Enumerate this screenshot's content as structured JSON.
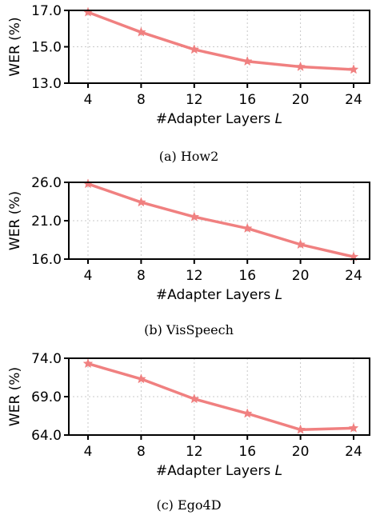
{
  "chart_data": [
    {
      "type": "line",
      "caption": "(a) How2",
      "ylabel": "WER (%)",
      "xlabel": "#Adapter Layers",
      "xlabel_var": "L",
      "x": [
        4,
        8,
        12,
        16,
        20,
        24
      ],
      "xticks": [
        "4",
        "8",
        "12",
        "16",
        "20",
        "24"
      ],
      "yticks": [
        "13.0",
        "15.0",
        "17.0"
      ],
      "ylim": [
        13.0,
        17.0
      ],
      "series": [
        {
          "values": [
            16.9,
            15.8,
            14.85,
            14.2,
            13.9,
            13.75
          ]
        }
      ],
      "grid": true,
      "color": "#f08080"
    },
    {
      "type": "line",
      "caption": "(b) VisSpeech",
      "ylabel": "WER (%)",
      "xlabel": "#Adapter Layers",
      "xlabel_var": "L",
      "x": [
        4,
        8,
        12,
        16,
        20,
        24
      ],
      "xticks": [
        "4",
        "8",
        "12",
        "16",
        "20",
        "24"
      ],
      "yticks": [
        "16.0",
        "21.0",
        "26.0"
      ],
      "ylim": [
        16.0,
        26.0
      ],
      "series": [
        {
          "values": [
            25.8,
            23.4,
            21.5,
            20.0,
            17.9,
            16.3
          ]
        }
      ],
      "grid": true,
      "color": "#f08080"
    },
    {
      "type": "line",
      "caption": "(c) Ego4D",
      "ylabel": "WER (%)",
      "xlabel": "#Adapter Layers",
      "xlabel_var": "L",
      "x": [
        4,
        8,
        12,
        16,
        20,
        24
      ],
      "xticks": [
        "4",
        "8",
        "12",
        "16",
        "20",
        "24"
      ],
      "yticks": [
        "64.0",
        "69.0",
        "74.0"
      ],
      "ylim": [
        64.0,
        74.0
      ],
      "series": [
        {
          "values": [
            73.3,
            71.3,
            68.7,
            66.8,
            64.7,
            64.9
          ]
        }
      ],
      "grid": true,
      "color": "#f08080"
    }
  ]
}
